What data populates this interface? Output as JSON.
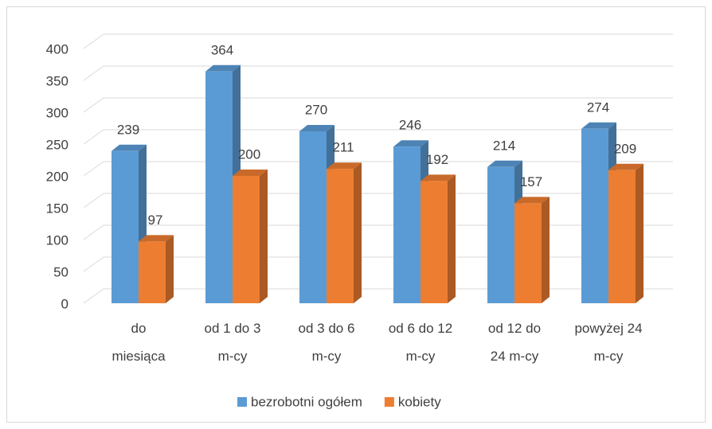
{
  "chart_data": {
    "type": "bar3d",
    "categories": [
      "do\nmiesiąca",
      "od 1 do 3\nm-cy",
      "od 3 do 6\nm-cy",
      "od 6 do 12\nm-cy",
      "od 12 do\n24 m-cy",
      "powyżej 24\nm-cy"
    ],
    "series": [
      {
        "name": "bezrobotni ogółem",
        "color": "#5b9bd5",
        "values": [
          239,
          364,
          270,
          246,
          214,
          274
        ]
      },
      {
        "name": "kobiety",
        "color": "#ed7d31",
        "values": [
          97,
          200,
          211,
          192,
          157,
          209
        ]
      }
    ],
    "ylim": [
      0,
      400
    ],
    "yticks": [
      0,
      50,
      100,
      150,
      200,
      250,
      300,
      350,
      400
    ],
    "grid": true,
    "legend": "bottom"
  }
}
